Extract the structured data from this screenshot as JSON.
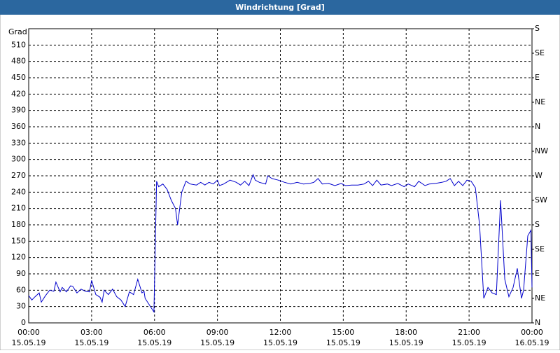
{
  "chart_data": {
    "type": "line",
    "title": "Windrichtung [Grad]",
    "y_label": "Grad",
    "xlim": [
      0,
      24
    ],
    "ylim": [
      0,
      540
    ],
    "y2lim": [
      0,
      540
    ],
    "grid": true,
    "xticks": [
      {
        "value": 0,
        "label": "00:00",
        "date": "15.05.19"
      },
      {
        "value": 3,
        "label": "03:00",
        "date": "15.05.19"
      },
      {
        "value": 6,
        "label": "06:00",
        "date": "15.05.19"
      },
      {
        "value": 9,
        "label": "09:00",
        "date": "15.05.19"
      },
      {
        "value": 12,
        "label": "12:00",
        "date": "15.05.19"
      },
      {
        "value": 15,
        "label": "15:00",
        "date": "15.05.19"
      },
      {
        "value": 18,
        "label": "18:00",
        "date": "15.05.19"
      },
      {
        "value": 21,
        "label": "21:00",
        "date": "15.05.19"
      },
      {
        "value": 24,
        "label": "00:00",
        "date": "16.05.19"
      }
    ],
    "yticks": [
      0,
      30,
      60,
      90,
      120,
      150,
      180,
      210,
      240,
      270,
      300,
      330,
      360,
      390,
      420,
      450,
      480,
      510
    ],
    "y2ticks": [
      {
        "value": 0,
        "label": "N"
      },
      {
        "value": 45,
        "label": "NE"
      },
      {
        "value": 90,
        "label": "E"
      },
      {
        "value": 135,
        "label": "SE"
      },
      {
        "value": 180,
        "label": "S"
      },
      {
        "value": 225,
        "label": "SW"
      },
      {
        "value": 270,
        "label": "W"
      },
      {
        "value": 315,
        "label": "NW"
      },
      {
        "value": 360,
        "label": "N"
      },
      {
        "value": 405,
        "label": "NE"
      },
      {
        "value": 450,
        "label": "E"
      },
      {
        "value": 495,
        "label": "SE"
      },
      {
        "value": 540,
        "label": "S"
      }
    ],
    "series": [
      {
        "name": "Windrichtung",
        "color": "#0000cc",
        "x": [
          0,
          0.15,
          0.3,
          0.5,
          0.6,
          0.8,
          1.0,
          1.2,
          1.3,
          1.5,
          1.6,
          1.8,
          2.0,
          2.1,
          2.3,
          2.5,
          2.7,
          2.9,
          3.0,
          3.2,
          3.4,
          3.5,
          3.6,
          3.8,
          4.0,
          4.2,
          4.4,
          4.6,
          4.8,
          5.0,
          5.2,
          5.4,
          5.5,
          5.55,
          5.97,
          6.1,
          6.2,
          6.4,
          6.6,
          6.8,
          7.0,
          7.1,
          7.3,
          7.5,
          7.7,
          8.0,
          8.2,
          8.4,
          8.6,
          8.8,
          9.0,
          9.1,
          9.3,
          9.6,
          9.9,
          10.1,
          10.3,
          10.5,
          10.7,
          10.8,
          11.0,
          11.3,
          11.4,
          11.6,
          11.9,
          12.2,
          12.5,
          12.8,
          13.1,
          13.4,
          13.6,
          13.8,
          14.0,
          14.3,
          14.6,
          14.9,
          15.1,
          15.4,
          15.7,
          16.0,
          16.2,
          16.4,
          16.6,
          16.8,
          17.1,
          17.3,
          17.6,
          17.9,
          18.1,
          18.4,
          18.6,
          18.9,
          19.1,
          19.4,
          19.7,
          19.9,
          20.1,
          20.3,
          20.5,
          20.7,
          20.9,
          21.1,
          21.3,
          21.5,
          21.7,
          21.9,
          22.1,
          22.3,
          22.5,
          22.7,
          22.9,
          23.1,
          23.3,
          23.5,
          23.6,
          23.8,
          23.95,
          24.0
        ],
        "values": [
          50,
          42,
          48,
          55,
          38,
          50,
          60,
          58,
          75,
          57,
          65,
          57,
          68,
          67,
          55,
          62,
          58,
          57,
          78,
          52,
          47,
          38,
          60,
          52,
          62,
          48,
          42,
          30,
          57,
          52,
          80,
          55,
          58,
          45,
          20,
          260,
          250,
          255,
          245,
          225,
          210,
          180,
          240,
          260,
          255,
          253,
          258,
          253,
          258,
          255,
          262,
          252,
          255,
          262,
          258,
          253,
          260,
          252,
          272,
          262,
          258,
          255,
          270,
          265,
          262,
          258,
          255,
          258,
          255,
          256,
          258,
          265,
          255,
          256,
          252,
          256,
          252,
          253,
          253,
          255,
          260,
          252,
          262,
          253,
          255,
          252,
          256,
          250,
          255,
          250,
          260,
          252,
          255,
          256,
          258,
          260,
          265,
          252,
          260,
          252,
          262,
          260,
          248,
          180,
          45,
          65,
          55,
          52,
          225,
          80,
          48,
          65,
          100,
          45,
          60,
          160,
          170,
          65
        ]
      }
    ]
  }
}
